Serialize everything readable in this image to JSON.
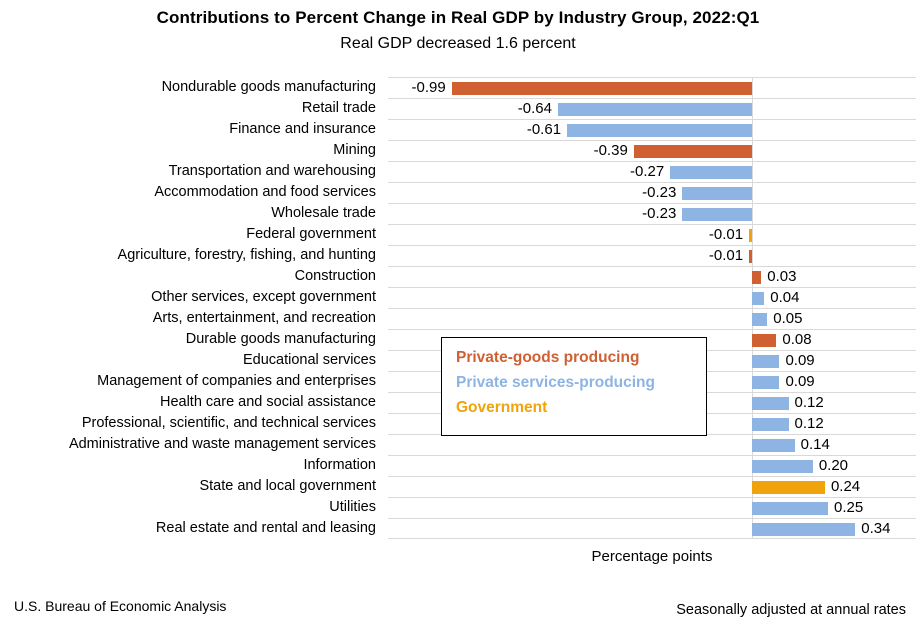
{
  "header": {
    "title": "Contributions to Percent Change in Real GDP by Industry Group, 2022:Q1",
    "subtitle": "Real GDP decreased 1.6 percent"
  },
  "chart_data": {
    "type": "bar",
    "orientation": "horizontal",
    "title": "Contributions to Percent Change in Real GDP by Industry Group, 2022:Q1",
    "subtitle": "Real GDP decreased 1.6 percent",
    "xlabel": "Percentage points",
    "xlim": [
      -1.2,
      0.54
    ],
    "grid": "horizontal-row-separators",
    "categories": [
      "Nondurable goods manufacturing",
      "Retail trade",
      "Finance and insurance",
      "Mining",
      "Transportation and warehousing",
      "Accommodation and food services",
      "Wholesale trade",
      "Federal government",
      "Agriculture, forestry, fishing, and hunting",
      "Construction",
      "Other services, except government",
      "Arts, entertainment, and recreation",
      "Durable goods manufacturing",
      "Educational services",
      "Management of companies and enterprises",
      "Health care and social assistance",
      "Professional, scientific, and technical services",
      "Administrative and waste management services",
      "Information",
      "State and local government",
      "Utilities",
      "Real estate and rental and leasing"
    ],
    "values": [
      -0.99,
      -0.64,
      -0.61,
      -0.39,
      -0.27,
      -0.23,
      -0.23,
      -0.01,
      -0.01,
      0.03,
      0.04,
      0.05,
      0.08,
      0.09,
      0.09,
      0.12,
      0.12,
      0.14,
      0.2,
      0.24,
      0.25,
      0.34
    ],
    "groups": [
      "goods",
      "services",
      "services",
      "goods",
      "services",
      "services",
      "services",
      "government",
      "goods",
      "goods",
      "services",
      "services",
      "goods",
      "services",
      "services",
      "services",
      "services",
      "services",
      "services",
      "government",
      "services",
      "services"
    ],
    "colors": {
      "goods": "#d06032",
      "services": "#8eb4e3",
      "government": "#f0a30a"
    },
    "legend": {
      "position": "center-overlay",
      "entries": [
        {
          "key": "goods",
          "label": "Private-goods producing"
        },
        {
          "key": "services",
          "label": "Private services-producing"
        },
        {
          "key": "government",
          "label": "Government"
        }
      ]
    }
  },
  "footer": {
    "left": "U.S. Bureau of Economic Analysis",
    "right": "Seasonally adjusted at annual rates"
  }
}
